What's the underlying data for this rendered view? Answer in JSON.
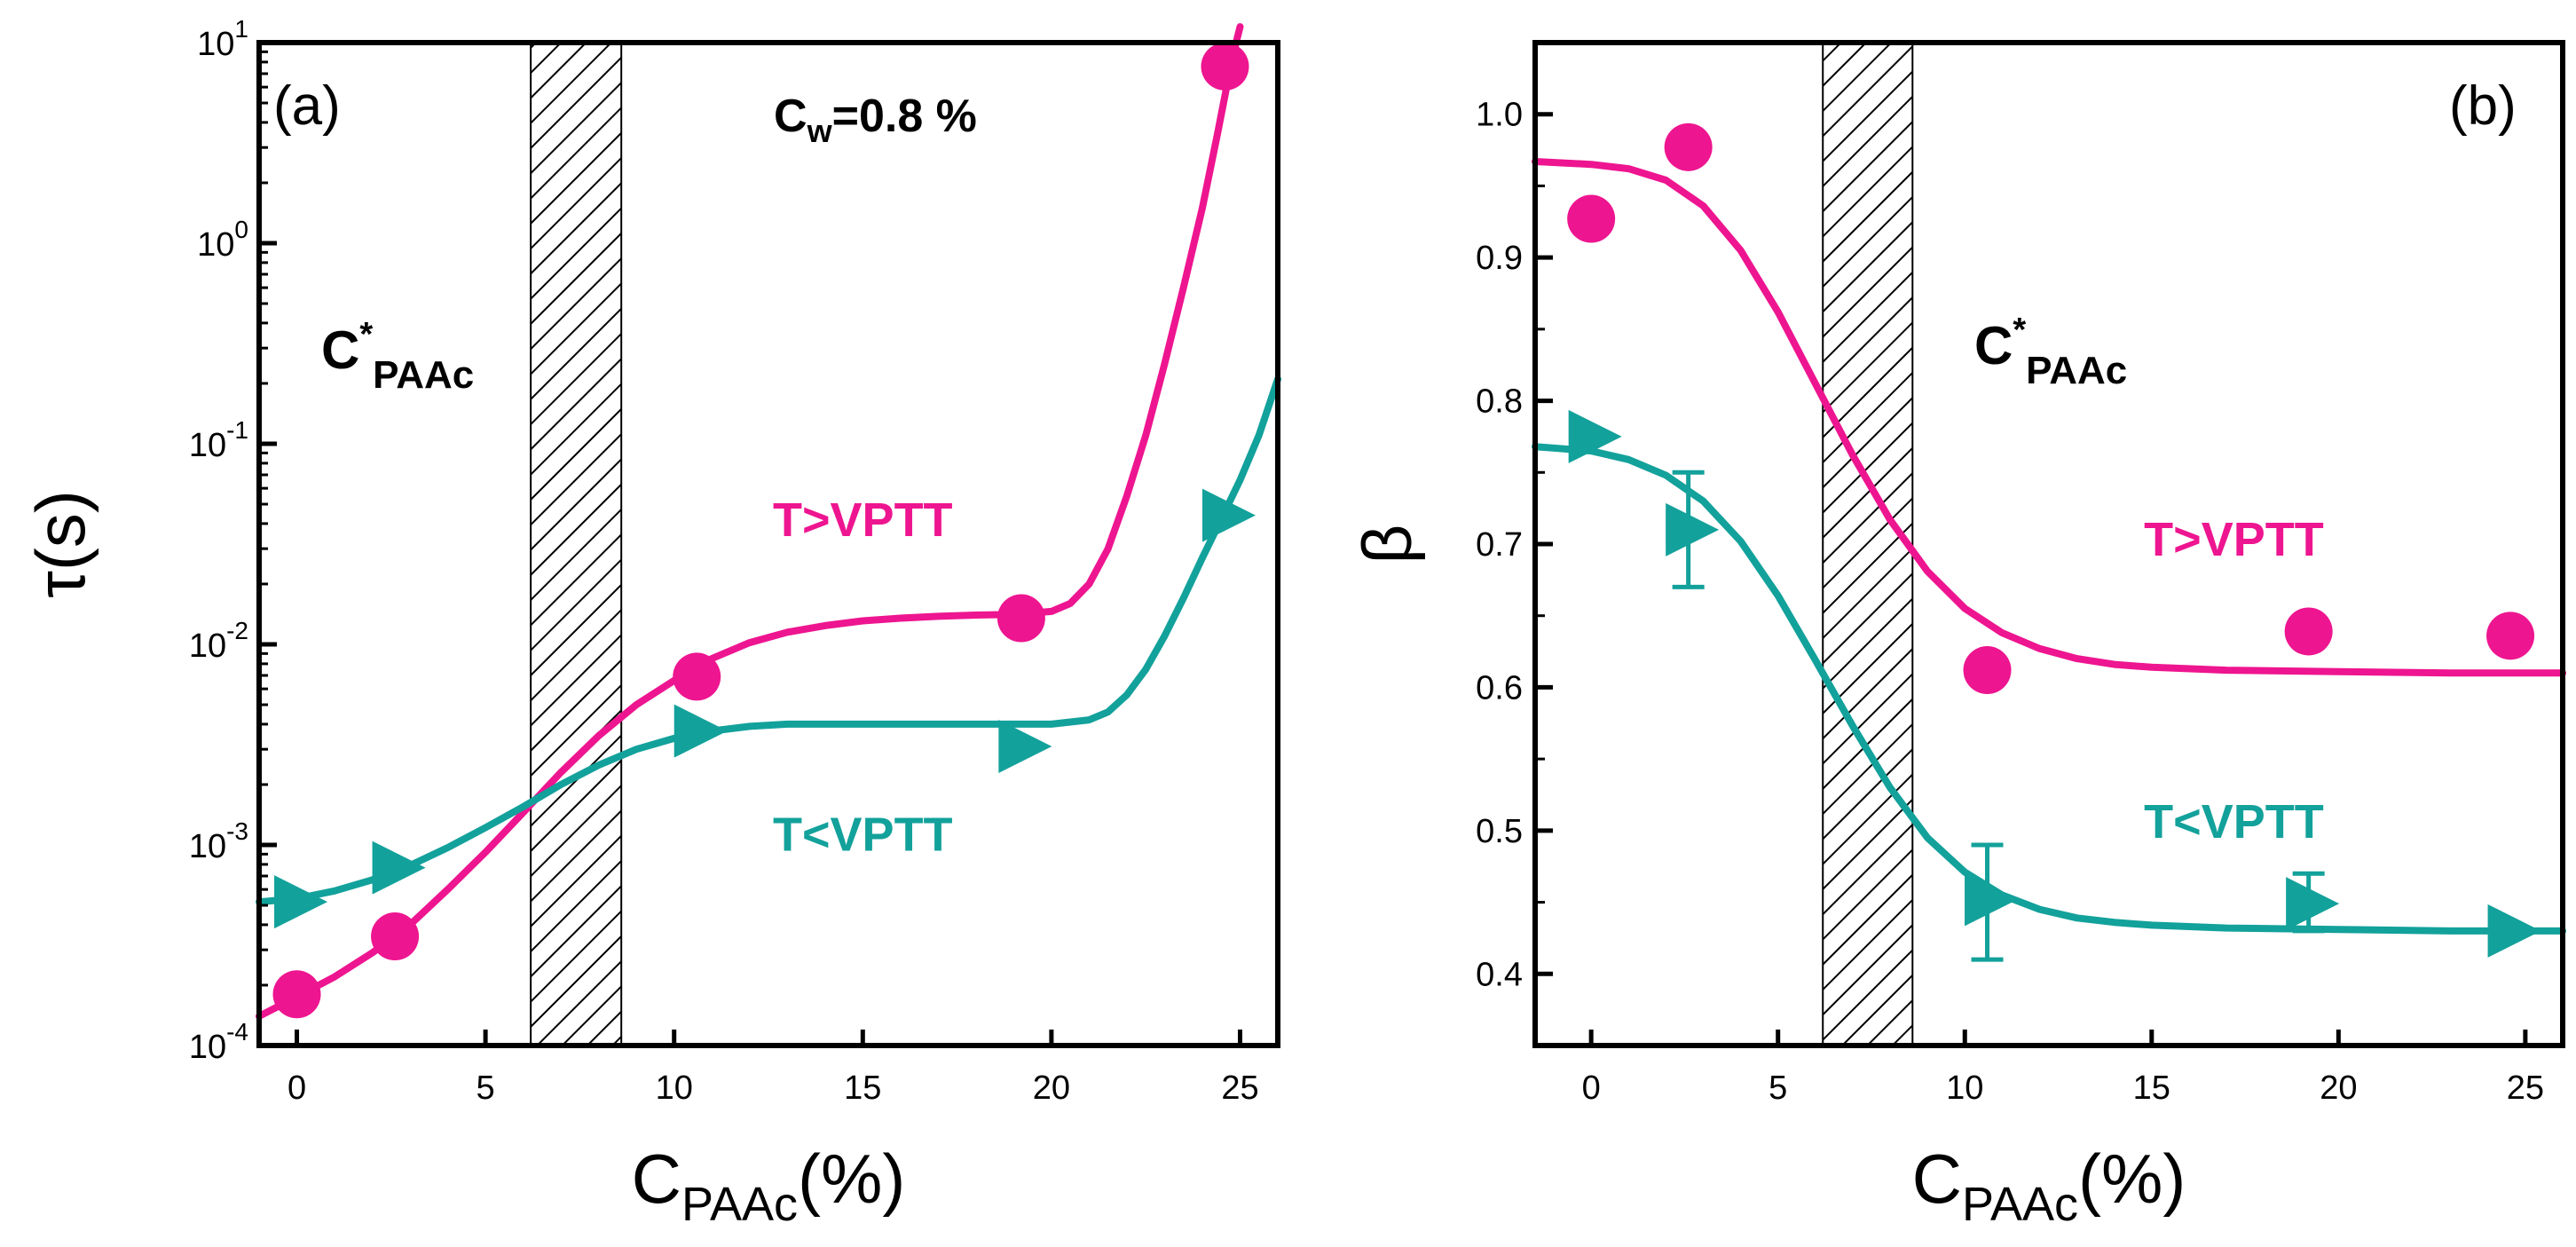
{
  "colors": {
    "high_t": "#ee1590",
    "low_t": "#13a19b",
    "axes": "#000000",
    "hatch": "#000000"
  },
  "chart_data": [
    {
      "panel": "a",
      "type": "scatter",
      "panel_label": "(a)",
      "xlabel_main": "C",
      "xlabel_sub": "PAAc",
      "xlabel_suffix": "(%)",
      "ylabel": "τ(s)",
      "yscale": "log",
      "xlim": [
        -1,
        26
      ],
      "ylim_log10": [
        -4,
        1
      ],
      "x_ticks": [
        0,
        5,
        10,
        15,
        20,
        25
      ],
      "x_tick_labels": [
        "0",
        "5",
        "10",
        "15",
        "20",
        "25"
      ],
      "y_ticks": [
        {
          "exp": -4,
          "base": "10",
          "power": "-4"
        },
        {
          "exp": -3,
          "base": "10",
          "power": "-3"
        },
        {
          "exp": -2,
          "base": "10",
          "power": "-2"
        },
        {
          "exp": -1,
          "base": "10",
          "power": "-1"
        },
        {
          "exp": 0,
          "base": "10",
          "power": "0"
        },
        {
          "exp": 1,
          "base": "10",
          "power": "1"
        }
      ],
      "hatch_region": [
        6.2,
        8.6
      ],
      "cstar_label": {
        "main": "C",
        "sup": "*",
        "sub": "PAAc"
      },
      "cw_label": {
        "main": "C",
        "sub": "w",
        "rest": "=0.8 %"
      },
      "series": [
        {
          "name": "T>VPTT",
          "marker": "circle",
          "color_key": "high_t",
          "points": [
            [
              0,
              0.00018
            ],
            [
              2.6,
              0.00035
            ],
            [
              10.6,
              0.0069
            ],
            [
              19.2,
              0.0135
            ],
            [
              24.6,
              7.6
            ]
          ],
          "fit": [
            [
              -1,
              0.00014
            ],
            [
              0,
              0.000175
            ],
            [
              1,
              0.00022
            ],
            [
              2,
              0.00029
            ],
            [
              3,
              0.0004
            ],
            [
              4,
              0.0006
            ],
            [
              5,
              0.00092
            ],
            [
              6,
              0.00145
            ],
            [
              7,
              0.0023
            ],
            [
              8,
              0.0035
            ],
            [
              9,
              0.005
            ],
            [
              10,
              0.0066
            ],
            [
              11,
              0.0085
            ],
            [
              12,
              0.0102
            ],
            [
              13,
              0.0115
            ],
            [
              14,
              0.0124
            ],
            [
              15,
              0.0131
            ],
            [
              16,
              0.0135
            ],
            [
              17,
              0.0138
            ],
            [
              18,
              0.014
            ],
            [
              19,
              0.0141
            ],
            [
              20,
              0.0146
            ],
            [
              20.5,
              0.016
            ],
            [
              21,
              0.02
            ],
            [
              21.5,
              0.03
            ],
            [
              22,
              0.055
            ],
            [
              22.5,
              0.11
            ],
            [
              23,
              0.25
            ],
            [
              23.5,
              0.6
            ],
            [
              24,
              1.5
            ],
            [
              24.4,
              3.5
            ],
            [
              24.8,
              8.5
            ],
            [
              25.0,
              12
            ]
          ]
        },
        {
          "name": "T<VPTT",
          "marker": "triangle-right",
          "color_key": "low_t",
          "points": [
            [
              0,
              0.00052
            ],
            [
              2.6,
              0.00077
            ],
            [
              10.6,
              0.0037
            ],
            [
              19.2,
              0.0031
            ],
            [
              24.6,
              0.044
            ]
          ],
          "fit": [
            [
              -1,
              0.00052
            ],
            [
              0,
              0.00054
            ],
            [
              1,
              0.00059
            ],
            [
              2,
              0.00067
            ],
            [
              3,
              0.00079
            ],
            [
              4,
              0.00097
            ],
            [
              5,
              0.00122
            ],
            [
              6,
              0.00155
            ],
            [
              7,
              0.002
            ],
            [
              8,
              0.0025
            ],
            [
              9,
              0.003
            ],
            [
              10,
              0.0034
            ],
            [
              11,
              0.0037
            ],
            [
              12,
              0.0039
            ],
            [
              13,
              0.004
            ],
            [
              14,
              0.004
            ],
            [
              16,
              0.004
            ],
            [
              18,
              0.004
            ],
            [
              20,
              0.004
            ],
            [
              21,
              0.0042
            ],
            [
              21.5,
              0.0046
            ],
            [
              22,
              0.0056
            ],
            [
              22.5,
              0.0075
            ],
            [
              23,
              0.011
            ],
            [
              23.5,
              0.017
            ],
            [
              24,
              0.027
            ],
            [
              24.5,
              0.042
            ],
            [
              25,
              0.066
            ],
            [
              25.5,
              0.11
            ],
            [
              26,
              0.21
            ]
          ]
        }
      ],
      "series_labels": [
        {
          "text": "T>VPTT",
          "color_key": "high_t",
          "x": 15.0,
          "ylog": -1.38
        },
        {
          "text": "T<VPTT",
          "color_key": "low_t",
          "x": 15.0,
          "ylog": -2.95
        }
      ]
    },
    {
      "panel": "b",
      "type": "scatter",
      "panel_label": "(b)",
      "xlabel_main": "C",
      "xlabel_sub": "PAAc",
      "xlabel_suffix": "(%)",
      "ylabel": "β",
      "xlim": [
        -1.5,
        26
      ],
      "ylim": [
        0.35,
        1.05
      ],
      "x_ticks": [
        0,
        5,
        10,
        15,
        20,
        25
      ],
      "x_tick_labels": [
        "0",
        "5",
        "10",
        "15",
        "20",
        "25"
      ],
      "y_ticks": [
        0.4,
        0.5,
        0.6,
        0.7,
        0.8,
        0.9,
        1.0
      ],
      "y_tick_labels": [
        "0.4",
        "0.5",
        "0.6",
        "0.7",
        "0.8",
        "0.9",
        "1.0"
      ],
      "hatch_region": [
        6.2,
        8.6
      ],
      "cstar_label": {
        "main": "C",
        "sup": "*",
        "sub": "PAAc"
      },
      "series": [
        {
          "name": "T>VPTT",
          "marker": "circle",
          "color_key": "high_t",
          "points": [
            [
              0,
              0.927
            ],
            [
              2.6,
              0.977
            ],
            [
              10.6,
              0.612
            ],
            [
              19.2,
              0.639
            ],
            [
              24.6,
              0.636
            ]
          ],
          "fit": [
            [
              -1.5,
              0.967
            ],
            [
              0,
              0.965
            ],
            [
              1,
              0.962
            ],
            [
              2,
              0.954
            ],
            [
              3,
              0.936
            ],
            [
              4,
              0.905
            ],
            [
              5,
              0.862
            ],
            [
              6,
              0.812
            ],
            [
              7,
              0.762
            ],
            [
              8,
              0.717
            ],
            [
              9,
              0.681
            ],
            [
              10,
              0.655
            ],
            [
              11,
              0.638
            ],
            [
              12,
              0.627
            ],
            [
              13,
              0.62
            ],
            [
              14,
              0.616
            ],
            [
              15,
              0.614
            ],
            [
              17,
              0.612
            ],
            [
              20,
              0.611
            ],
            [
              23,
              0.61
            ],
            [
              26,
              0.61
            ]
          ]
        },
        {
          "name": "T<VPTT",
          "marker": "triangle-right",
          "color_key": "low_t",
          "points": [
            [
              0,
              0.775
            ],
            [
              2.6,
              0.71
            ],
            [
              10.6,
              0.452
            ],
            [
              19.2,
              0.449
            ],
            [
              24.6,
              0.43
            ]
          ],
          "error_bars": [
            [
              2.6,
              0.67,
              0.75
            ],
            [
              10.6,
              0.41,
              0.49
            ],
            [
              19.2,
              0.43,
              0.47
            ]
          ],
          "fit": [
            [
              -1.5,
              0.768
            ],
            [
              0,
              0.765
            ],
            [
              1,
              0.759
            ],
            [
              2,
              0.748
            ],
            [
              3,
              0.73
            ],
            [
              4,
              0.702
            ],
            [
              5,
              0.664
            ],
            [
              6,
              0.619
            ],
            [
              7,
              0.573
            ],
            [
              8,
              0.53
            ],
            [
              9,
              0.495
            ],
            [
              10,
              0.471
            ],
            [
              11,
              0.455
            ],
            [
              12,
              0.445
            ],
            [
              13,
              0.439
            ],
            [
              14,
              0.436
            ],
            [
              15,
              0.434
            ],
            [
              17,
              0.432
            ],
            [
              20,
              0.431
            ],
            [
              23,
              0.43
            ],
            [
              26,
              0.43
            ]
          ]
        }
      ],
      "series_labels": [
        {
          "text": "T>VPTT",
          "color_key": "high_t",
          "x": 17.2,
          "y": 0.703
        },
        {
          "text": "T<VPTT",
          "color_key": "low_t",
          "x": 17.2,
          "y": 0.506
        }
      ]
    }
  ]
}
